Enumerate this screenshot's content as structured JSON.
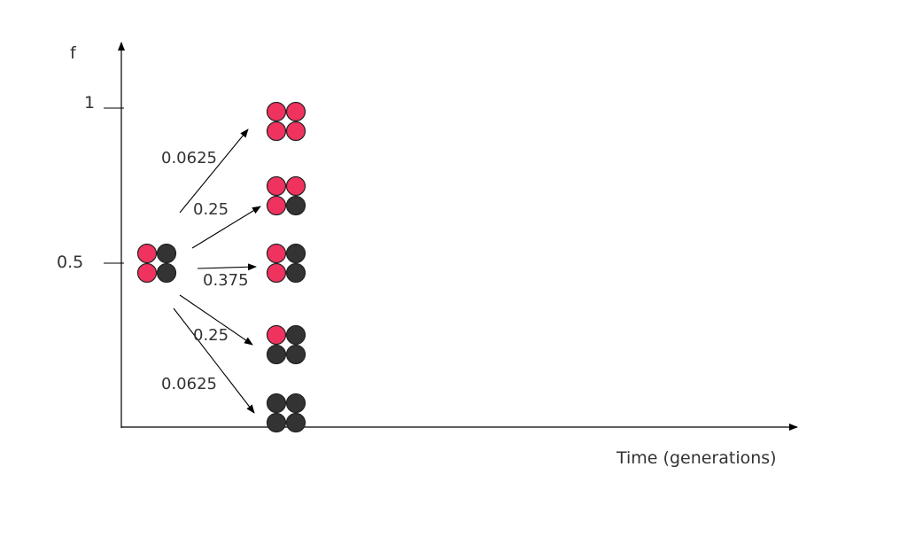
{
  "axes": {
    "y_label": "f",
    "x_label": "Time (generations)",
    "y_ticks": [
      "1",
      "0.5"
    ]
  },
  "colors": {
    "allele_a": "#f0325f",
    "allele_b": "#333333",
    "stroke": "#222222"
  },
  "initial_population": [
    "a",
    "b",
    "a",
    "b"
  ],
  "outcomes": [
    {
      "probability": "0.0625",
      "population": [
        "a",
        "a",
        "a",
        "a"
      ]
    },
    {
      "probability": "0.25",
      "population": [
        "a",
        "a",
        "a",
        "b"
      ]
    },
    {
      "probability": "0.375",
      "population": [
        "a",
        "b",
        "a",
        "b"
      ]
    },
    {
      "probability": "0.25",
      "population": [
        "a",
        "b",
        "b",
        "b"
      ]
    },
    {
      "probability": "0.0625",
      "population": [
        "b",
        "b",
        "b",
        "b"
      ]
    }
  ]
}
